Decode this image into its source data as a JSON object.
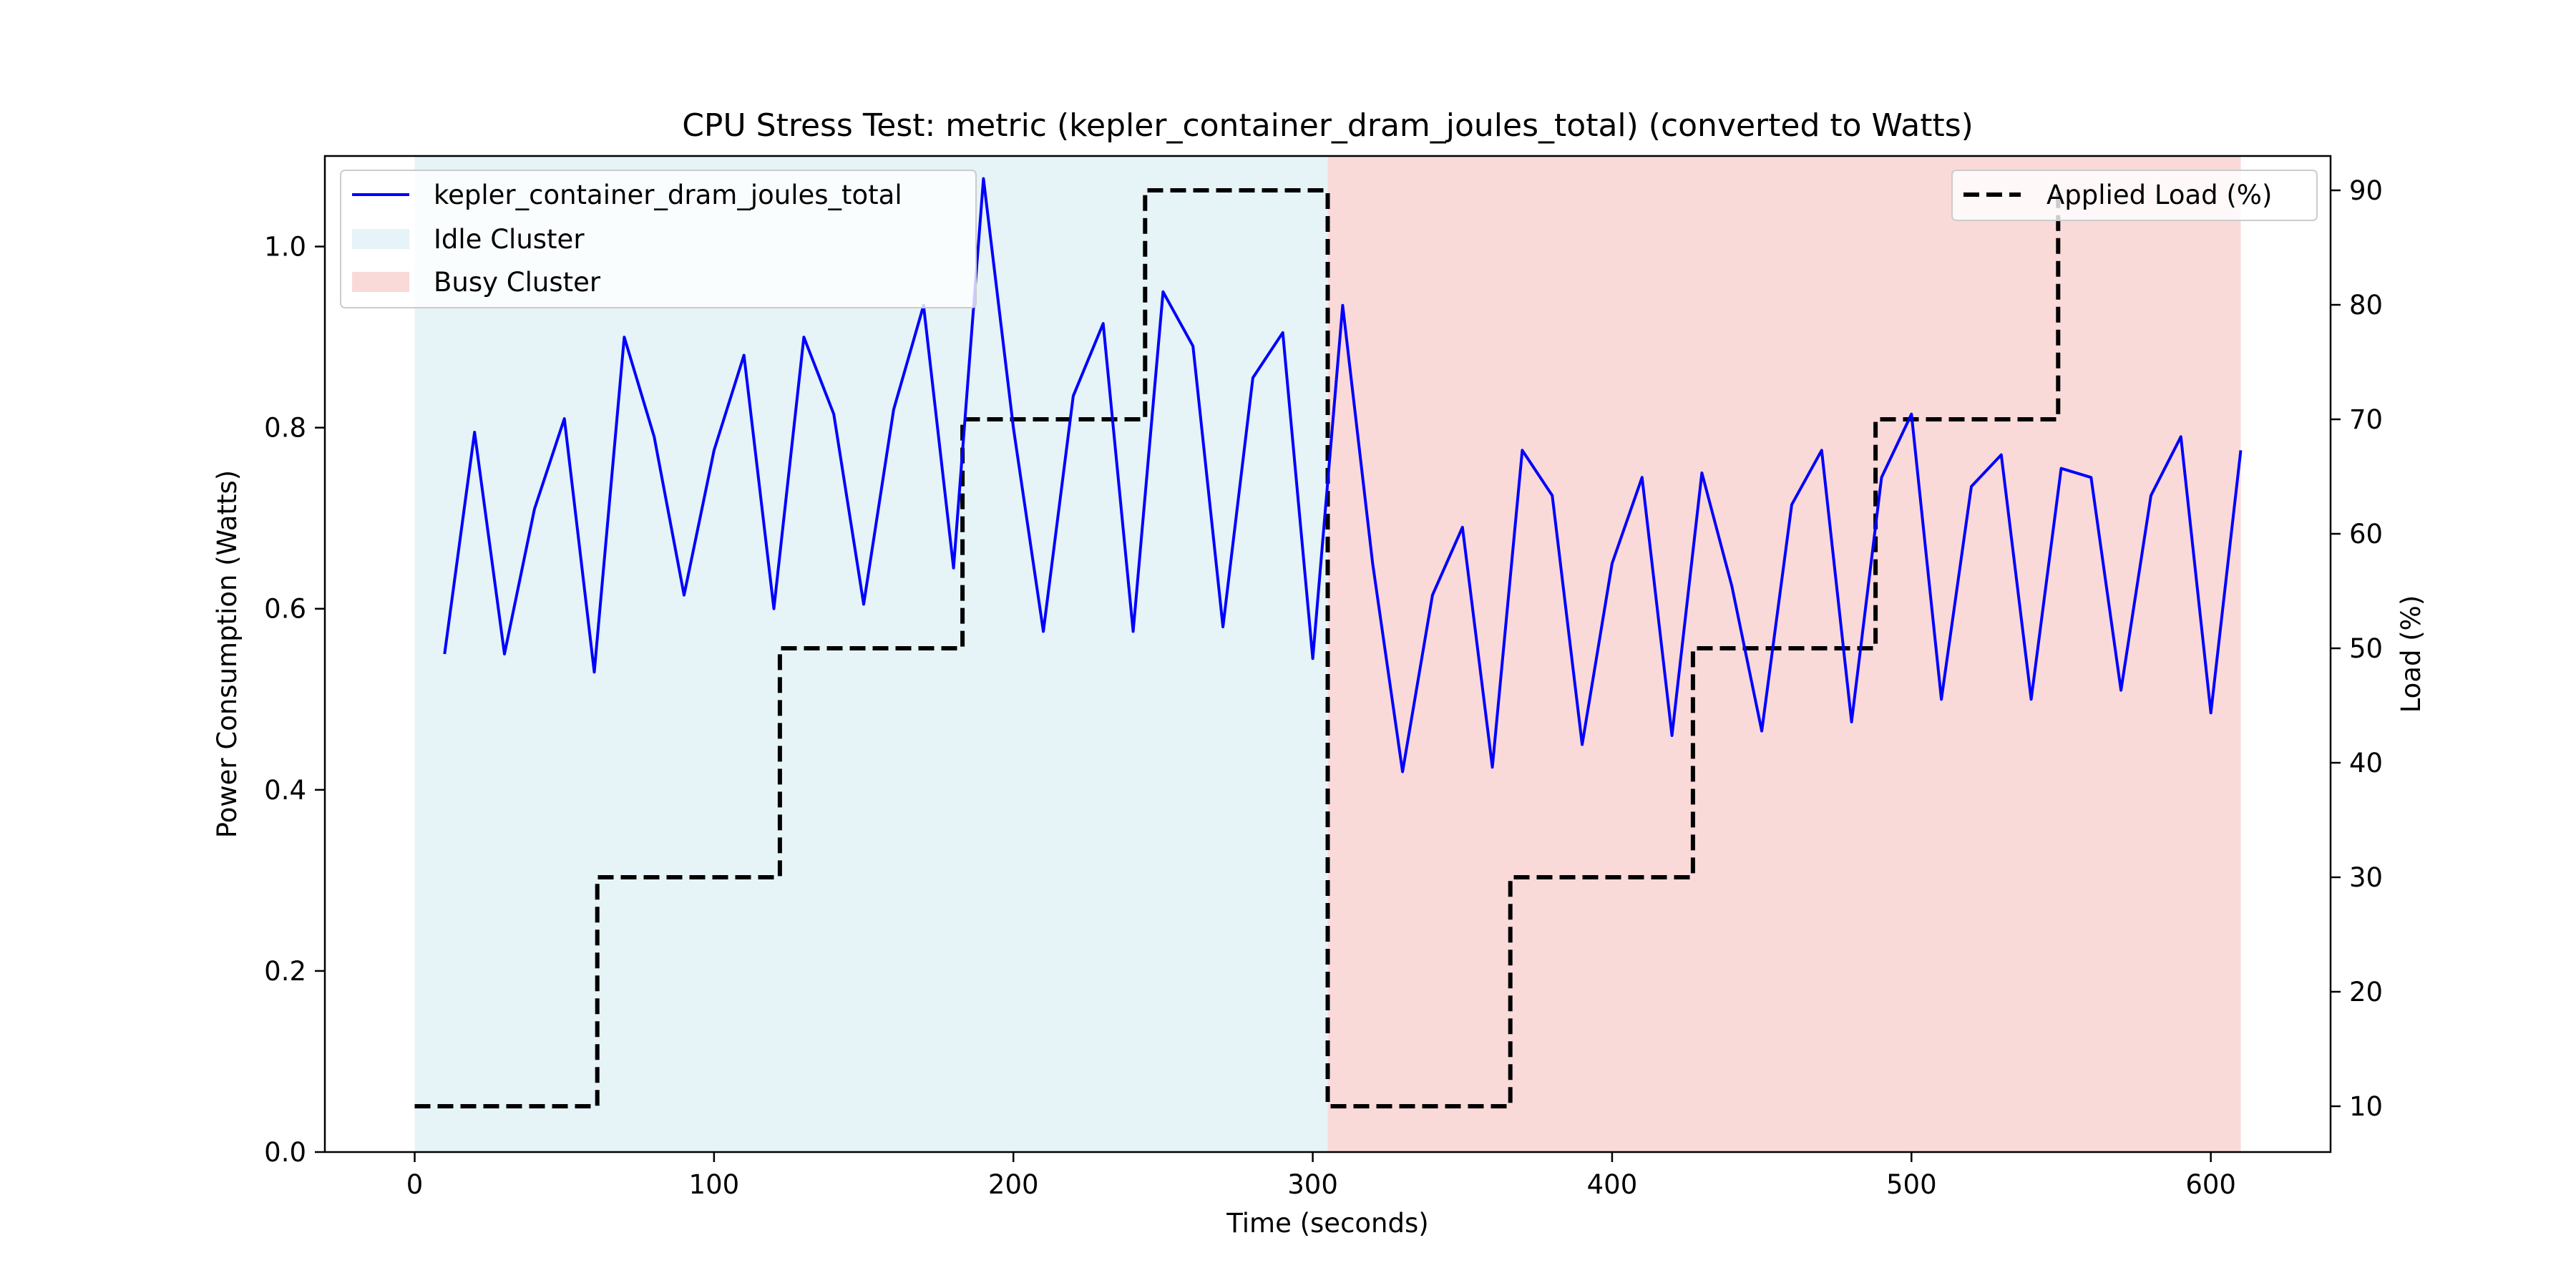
{
  "chart_data": {
    "type": "line",
    "title": "CPU Stress Test: metric (kepler_container_dram_joules_total) (converted to Watts)",
    "xlabel": "Time (seconds)",
    "ylabel": "Power Consumption (Watts)",
    "y2label": "Load (%)",
    "xlim": [
      -30,
      640
    ],
    "ylim": [
      0,
      1.1
    ],
    "y2lim": [
      6,
      93
    ],
    "xticks": [
      0,
      100,
      200,
      300,
      400,
      500,
      600
    ],
    "yticks": [
      0.0,
      0.2,
      0.4,
      0.6,
      0.8,
      1.0
    ],
    "y2ticks": [
      10,
      20,
      30,
      40,
      50,
      60,
      70,
      80,
      90
    ],
    "grid": false,
    "colors": {
      "power": "#0000ff",
      "load": "#000000",
      "idle": "#add8e6",
      "busy": "#f08080",
      "ylabel": "#0000ff"
    },
    "regions": [
      {
        "name": "Idle Cluster",
        "x0": 0,
        "x1": 305
      },
      {
        "name": "Busy Cluster",
        "x0": 305,
        "x1": 610
      }
    ],
    "series": [
      {
        "name": "kepler_container_dram_joules_total",
        "axis": "left",
        "x": [
          10,
          20,
          30,
          40,
          50,
          60,
          70,
          80,
          90,
          100,
          110,
          120,
          130,
          140,
          150,
          160,
          170,
          180,
          190,
          200,
          210,
          220,
          230,
          240,
          250,
          260,
          270,
          280,
          290,
          300,
          310,
          320,
          330,
          340,
          350,
          360,
          370,
          380,
          390,
          400,
          410,
          420,
          430,
          440,
          450,
          460,
          470,
          480,
          490,
          500,
          510,
          520,
          530,
          540,
          550,
          560,
          570,
          580,
          590,
          600,
          610
        ],
        "y": [
          0.55,
          0.795,
          0.55,
          0.71,
          0.81,
          0.53,
          0.9,
          0.79,
          0.615,
          0.775,
          0.88,
          0.6,
          0.9,
          0.815,
          0.605,
          0.82,
          0.935,
          0.645,
          1.075,
          0.8,
          0.575,
          0.835,
          0.915,
          0.575,
          0.95,
          0.89,
          0.58,
          0.855,
          0.905,
          0.545,
          0.935,
          0.65,
          0.42,
          0.615,
          0.69,
          0.425,
          0.775,
          0.725,
          0.45,
          0.65,
          0.745,
          0.46,
          0.75,
          0.625,
          0.465,
          0.715,
          0.775,
          0.475,
          0.745,
          0.815,
          0.5,
          0.735,
          0.77,
          0.5,
          0.755,
          0.745,
          0.51,
          0.725,
          0.79,
          0.485,
          0.775
        ]
      },
      {
        "name": "Applied Load (%)",
        "axis": "right",
        "style": "dashed",
        "x": [
          0,
          61,
          61,
          122,
          122,
          183,
          183,
          244,
          244,
          305,
          305,
          366,
          366,
          427,
          427,
          488,
          488,
          549,
          549
        ],
        "y": [
          10,
          10,
          30,
          30,
          50,
          50,
          70,
          70,
          90,
          90,
          10,
          10,
          30,
          30,
          50,
          50,
          70,
          70,
          90
        ]
      }
    ],
    "legend_left": {
      "placement": "upper-left",
      "entries": [
        "kepler_container_dram_joules_total",
        "Idle Cluster",
        "Busy Cluster"
      ]
    },
    "legend_right": {
      "placement": "upper-right",
      "entries": [
        "Applied Load (%)"
      ]
    }
  }
}
